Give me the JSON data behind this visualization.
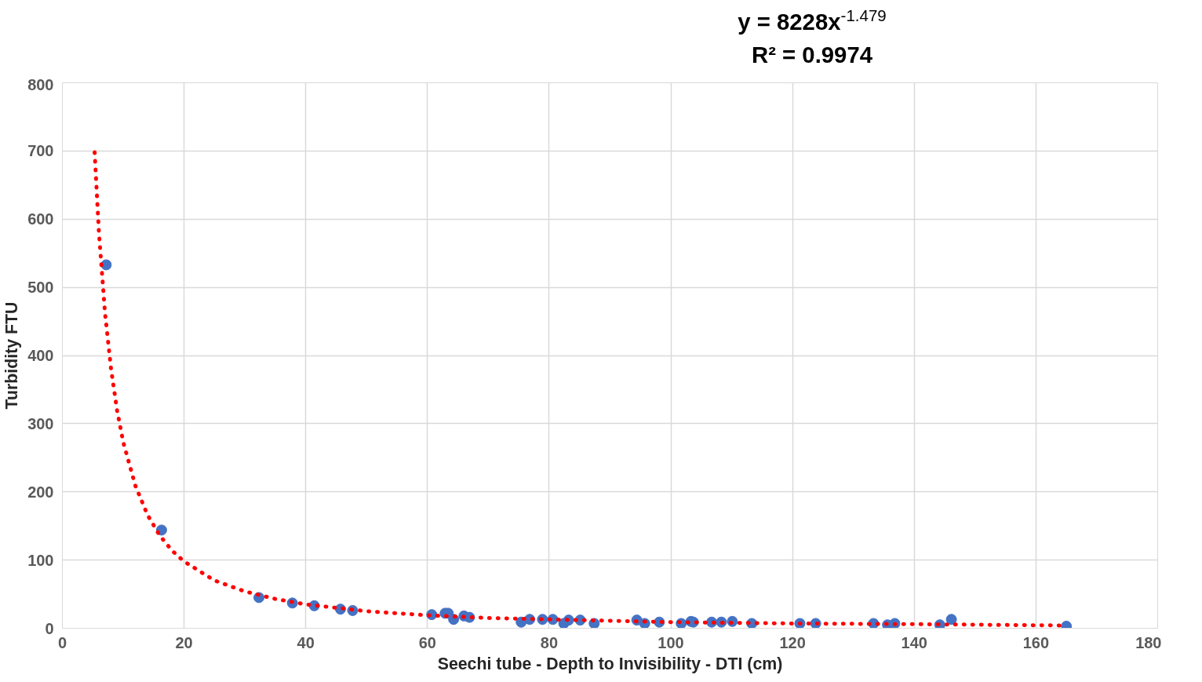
{
  "chart_data": {
    "type": "scatter",
    "xlabel": "Seechi tube - Depth to Invisibility - DTI (cm)",
    "ylabel": "Turbidity FTU",
    "annotations": [
      "y = 8228x$^{-1.479}$",
      "R² = 0.9974"
    ],
    "xlim": [
      0,
      180
    ],
    "xticks": [
      0,
      20,
      40,
      60,
      80,
      100,
      120,
      140,
      160,
      180
    ],
    "ylim": [
      0,
      800
    ],
    "yticks": [
      0,
      100,
      200,
      300,
      400,
      500,
      600,
      700,
      800
    ],
    "grid": true,
    "series": [
      {
        "color": "#4472c4",
        "marker": "circle",
        "x": [
          7.2,
          16.3,
          32.3,
          37.8,
          41.4,
          45.7,
          47.7,
          60.7,
          62.9,
          63.4,
          64.3,
          66.0,
          66.9,
          75.4,
          76.8,
          78.9,
          80.6,
          82.4,
          83.2,
          85.1,
          87.4,
          94.4,
          95.7,
          98.1,
          101.7,
          103.3,
          103.7,
          106.7,
          108.3,
          110.1,
          113.3,
          121.2,
          123.8,
          133.3,
          135.6,
          136.8,
          144.2,
          146.1,
          165.0
        ],
        "values": [
          533,
          144,
          45,
          37,
          33,
          28,
          26,
          20,
          22,
          22,
          13,
          18,
          16,
          9,
          13,
          13,
          13,
          7,
          12,
          12,
          7,
          12,
          7,
          9,
          7,
          10,
          9,
          9,
          9,
          10,
          7,
          7,
          7,
          7,
          5,
          7,
          5,
          13,
          3
        ]
      },
      {
        "type": "line",
        "color": "#ff0000",
        "line_style": "dotted",
        "marker": "none",
        "x": [
          5.3,
          6,
          7,
          8,
          9,
          10,
          12,
          14,
          16,
          18,
          20,
          25,
          30,
          35,
          40,
          50,
          60,
          70,
          80,
          100,
          120,
          140,
          165
        ],
        "values": [
          698,
          581,
          463,
          380,
          319,
          273,
          209,
          166,
          136,
          114,
          98,
          70,
          54,
          43,
          35,
          25,
          19,
          15,
          13,
          9,
          7,
          6,
          4
        ]
      }
    ]
  }
}
